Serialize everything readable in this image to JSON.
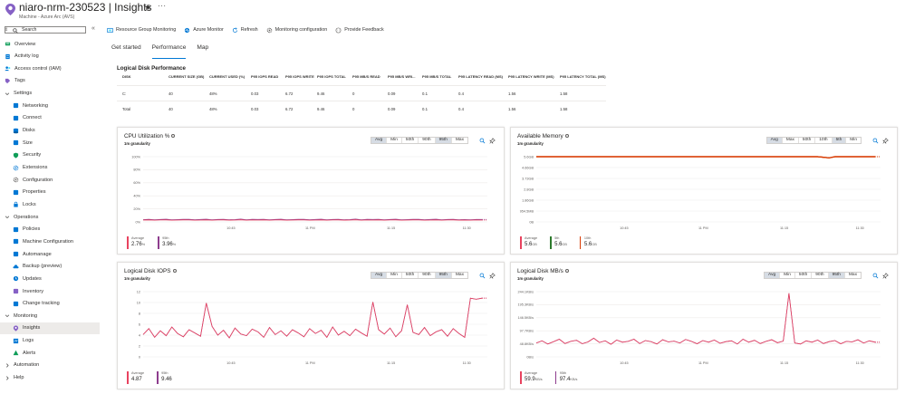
{
  "header": {
    "title": "niaro-nrm-230523 | Insights",
    "subtitle": "Machine - Azure Arc (AVS)",
    "star": "★",
    "more": "···"
  },
  "sidebar": {
    "search_placeholder": "Search",
    "collapse": "«",
    "items": [
      {
        "label": "Overview",
        "icon": "overview-icon",
        "level": 0
      },
      {
        "label": "Activity log",
        "icon": "activity-log-icon",
        "level": 0
      },
      {
        "label": "Access control (IAM)",
        "icon": "iam-icon",
        "level": 0
      },
      {
        "label": "Tags",
        "icon": "tag-icon",
        "level": 0
      },
      {
        "label": "Settings",
        "icon": "chevron-down-icon",
        "level": 0,
        "group": true
      },
      {
        "label": "Networking",
        "icon": "networking-icon",
        "level": 1
      },
      {
        "label": "Connect",
        "icon": "connect-icon",
        "level": 1
      },
      {
        "label": "Disks",
        "icon": "disk-icon",
        "level": 1
      },
      {
        "label": "Size",
        "icon": "size-icon",
        "level": 1
      },
      {
        "label": "Security",
        "icon": "shield-icon",
        "level": 1
      },
      {
        "label": "Extensions",
        "icon": "extensions-icon",
        "level": 1
      },
      {
        "label": "Configuration",
        "icon": "configuration-icon",
        "level": 1
      },
      {
        "label": "Properties",
        "icon": "properties-icon",
        "level": 1
      },
      {
        "label": "Locks",
        "icon": "lock-icon",
        "level": 1
      },
      {
        "label": "Operations",
        "icon": "chevron-down-icon",
        "level": 0,
        "group": true
      },
      {
        "label": "Policies",
        "icon": "policies-icon",
        "level": 1
      },
      {
        "label": "Machine Configuration",
        "icon": "machine-configuration-icon",
        "level": 1
      },
      {
        "label": "Automanage",
        "icon": "automanage-icon",
        "level": 1
      },
      {
        "label": "Backup (preview)",
        "icon": "backup-icon",
        "level": 1
      },
      {
        "label": "Updates",
        "icon": "updates-icon",
        "level": 1
      },
      {
        "label": "Inventory",
        "icon": "inventory-icon",
        "level": 1
      },
      {
        "label": "Change tracking",
        "icon": "change-tracking-icon",
        "level": 1
      },
      {
        "label": "Monitoring",
        "icon": "chevron-down-icon",
        "level": 0,
        "group": true
      },
      {
        "label": "Insights",
        "icon": "insights-icon",
        "level": 1,
        "active": true
      },
      {
        "label": "Logs",
        "icon": "logs-icon",
        "level": 1
      },
      {
        "label": "Alerts",
        "icon": "alerts-icon",
        "level": 1
      },
      {
        "label": "Automation",
        "icon": "chevron-right-icon",
        "level": 0,
        "group": true
      },
      {
        "label": "Help",
        "icon": "chevron-right-icon",
        "level": 0,
        "group": true
      }
    ]
  },
  "toolbar": [
    {
      "label": "Resource Group Monitoring",
      "icon": "resource-group-icon"
    },
    {
      "label": "Azure Monitor",
      "icon": "azure-monitor-icon"
    },
    {
      "label": "Refresh",
      "icon": "refresh-icon"
    },
    {
      "label": "Monitoring configuration",
      "icon": "gear-icon"
    },
    {
      "label": "Provide Feedback",
      "icon": "feedback-icon"
    }
  ],
  "tabs": [
    {
      "label": "Get started",
      "active": false
    },
    {
      "label": "Performance",
      "active": true
    },
    {
      "label": "Map",
      "active": false
    }
  ],
  "disk_table": {
    "title": "Logical Disk Performance",
    "columns": [
      "DISK",
      "CURRENT SIZE (GB)",
      "CURRENT USED (%)",
      "P95 IOPs READ",
      "P95 IOPs WRITE",
      "P95 IOPs TOTAL",
      "P95 MB/s READ",
      "P95 MB/s WRI...",
      "P95 MB/s TOTAL",
      "P95 LATENCY READ (ms)",
      "P95 LATENCY WRITE (ms)",
      "P95 LATENCY TOTAL (ms)"
    ],
    "rows": [
      [
        "C:",
        "40",
        "48%",
        "0.03",
        "6.72",
        "9.46",
        "0",
        "0.09",
        "0.1",
        "0.4",
        "1.56",
        "1.58"
      ],
      [
        "Total",
        "40",
        "48%",
        "0.03",
        "6.72",
        "9.46",
        "0",
        "0.09",
        "0.1",
        "0.4",
        "1.56",
        "1.58"
      ]
    ]
  },
  "colors": {
    "average": "#e8435f",
    "p95": "#8e3d8e",
    "available": "#d83b01",
    "p5": "#2d7a2d",
    "p10": "#c4314b",
    "accent": "#0078d4"
  },
  "cards": [
    {
      "title": "CPU Utilization %",
      "granularity": "1m granularity",
      "agg": [
        "Avg",
        "Min",
        "50th",
        "90th",
        "95th",
        "Max"
      ],
      "agg_selected": [
        0,
        4
      ],
      "legend": [
        {
          "name": "Average",
          "value": "2.76",
          "unit": "%",
          "color": "#e8435f"
        },
        {
          "name": "95th",
          "value": "3.96",
          "unit": "%",
          "color": "#8e3d8e"
        }
      ]
    },
    {
      "title": "Available Memory",
      "granularity": "1m granularity",
      "agg": [
        "Avg",
        "Max",
        "50th",
        "10th",
        "5th",
        "Min"
      ],
      "agg_selected": [
        0,
        4
      ],
      "legend": [
        {
          "name": "Average",
          "value": "5.6",
          "unit": "GB",
          "color": "#e8435f"
        },
        {
          "name": "5th",
          "value": "5.6",
          "unit": "GB",
          "color": "#2d7a2d"
        },
        {
          "name": "10th",
          "value": "5.6",
          "unit": "GB",
          "color": "#d83b01"
        }
      ]
    },
    {
      "title": "Logical Disk IOPS",
      "granularity": "1m granularity",
      "agg": [
        "Avg",
        "Min",
        "50th",
        "90th",
        "95th",
        "Max"
      ],
      "agg_selected": [
        0,
        4
      ],
      "legend": [
        {
          "name": "Average",
          "value": "4.87",
          "unit": "",
          "color": "#e8435f"
        },
        {
          "name": "95th",
          "value": "9.46",
          "unit": "",
          "color": "#8e3d8e"
        }
      ]
    },
    {
      "title": "Logical Disk MB/s",
      "granularity": "1m granularity",
      "agg": [
        "Avg",
        "Min",
        "50th",
        "90th",
        "95th",
        "Max"
      ],
      "agg_selected": [
        0,
        4
      ],
      "legend": [
        {
          "name": "Average",
          "value": "59.9",
          "unit": "KB/s",
          "color": "#e8435f"
        },
        {
          "name": "95th",
          "value": "97.4",
          "unit": "KB/s",
          "color": "#8e3d8e"
        }
      ]
    }
  ],
  "chart_data": [
    {
      "type": "line",
      "title": "CPU Utilization %",
      "x_ticks": [
        "10:45",
        "11 PM",
        "11:15",
        "11:30"
      ],
      "y_ticks": [
        "100%",
        "80%",
        "60%",
        "40%",
        "20%",
        "0%"
      ],
      "ylim": [
        0,
        100
      ],
      "series": [
        {
          "name": "Average",
          "values": [
            2.8,
            3.0,
            2.6,
            2.9,
            3.1,
            2.7,
            2.8,
            3.0,
            2.9,
            2.6,
            2.8,
            3.1,
            2.7,
            2.9,
            3.0,
            2.6,
            2.8,
            3.2,
            2.7,
            2.9,
            2.8,
            3.0,
            2.6,
            2.9,
            3.1,
            2.7,
            2.8,
            3.0,
            2.9,
            2.6,
            2.8,
            3.1,
            2.7,
            2.9,
            3.0,
            2.6,
            2.8,
            3.2,
            2.7,
            2.9,
            2.8,
            3.0,
            2.6,
            2.9,
            3.1,
            2.7,
            2.8,
            3.0,
            2.9,
            2.6,
            2.8,
            3.1,
            2.7,
            2.9,
            3.0,
            2.6,
            2.8,
            2.7,
            2.9,
            2.8
          ]
        },
        {
          "name": "95th",
          "values": [
            3.5,
            3.9,
            3.3,
            3.8,
            4.1,
            3.4,
            3.6,
            4.0,
            3.9,
            3.2,
            3.7,
            4.2,
            3.4,
            3.8,
            4.0,
            3.3,
            3.6,
            4.3,
            3.4,
            3.9,
            3.7,
            4.0,
            3.3,
            3.8,
            4.1,
            3.4,
            3.6,
            4.0,
            3.9,
            3.2,
            3.7,
            4.2,
            3.4,
            3.8,
            4.0,
            3.3,
            3.6,
            4.3,
            3.4,
            3.9,
            3.7,
            4.0,
            3.3,
            3.8,
            4.1,
            3.4,
            3.6,
            4.0,
            3.9,
            3.2,
            3.7,
            4.2,
            3.4,
            3.8,
            4.0,
            3.3,
            3.6,
            3.4,
            3.8,
            3.7
          ]
        }
      ]
    },
    {
      "type": "line",
      "title": "Available Memory",
      "x_ticks": [
        "10:45",
        "11 PM",
        "11:15",
        "11:30"
      ],
      "y_ticks": [
        "5.6GB",
        "4.66GB",
        "3.73GB",
        "2.8GB",
        "1.86GB",
        "954.5MB",
        "0B"
      ],
      "ylim": [
        0,
        5.6
      ],
      "series": [
        {
          "name": "Average",
          "values": [
            5.6,
            5.6,
            5.6,
            5.6,
            5.6,
            5.6,
            5.6,
            5.6,
            5.6,
            5.6,
            5.6,
            5.6,
            5.6,
            5.6,
            5.6,
            5.6,
            5.6,
            5.6,
            5.6,
            5.6,
            5.6,
            5.6,
            5.6,
            5.6,
            5.6,
            5.6,
            5.6,
            5.6,
            5.6,
            5.6,
            5.6,
            5.6,
            5.6,
            5.6,
            5.6,
            5.6,
            5.6,
            5.6,
            5.6,
            5.6,
            5.6,
            5.6,
            5.6,
            5.6,
            5.6,
            5.6,
            5.6,
            5.6,
            5.6,
            5.6,
            5.55,
            5.5,
            5.6,
            5.6,
            5.6,
            5.6,
            5.6,
            5.6,
            5.6,
            5.6
          ]
        },
        {
          "name": "5th",
          "values": [
            5.6,
            5.6,
            5.6,
            5.6,
            5.6,
            5.6,
            5.6,
            5.6,
            5.6,
            5.6,
            5.6,
            5.6,
            5.6,
            5.6,
            5.6,
            5.6,
            5.6,
            5.6,
            5.6,
            5.6,
            5.6,
            5.6,
            5.6,
            5.6,
            5.6,
            5.6,
            5.6,
            5.6,
            5.6,
            5.6,
            5.6,
            5.6,
            5.6,
            5.6,
            5.6,
            5.6,
            5.6,
            5.6,
            5.6,
            5.6,
            5.6,
            5.6,
            5.6,
            5.6,
            5.6,
            5.6,
            5.6,
            5.6,
            5.6,
            5.6,
            5.55,
            5.5,
            5.6,
            5.6,
            5.6,
            5.6,
            5.6,
            5.6,
            5.6,
            5.6
          ]
        },
        {
          "name": "10th",
          "values": [
            5.6,
            5.6,
            5.6,
            5.6,
            5.6,
            5.6,
            5.6,
            5.6,
            5.6,
            5.6,
            5.6,
            5.6,
            5.6,
            5.6,
            5.6,
            5.6,
            5.6,
            5.6,
            5.6,
            5.6,
            5.6,
            5.6,
            5.6,
            5.6,
            5.6,
            5.6,
            5.6,
            5.6,
            5.6,
            5.6,
            5.6,
            5.6,
            5.6,
            5.6,
            5.6,
            5.6,
            5.6,
            5.6,
            5.6,
            5.6,
            5.6,
            5.6,
            5.6,
            5.6,
            5.6,
            5.6,
            5.6,
            5.6,
            5.6,
            5.6,
            5.55,
            5.5,
            5.6,
            5.6,
            5.6,
            5.6,
            5.6,
            5.6,
            5.6,
            5.6
          ]
        }
      ]
    },
    {
      "type": "line",
      "title": "Logical Disk IOPS",
      "x_ticks": [
        "10:45",
        "11 PM",
        "11:15",
        "11:30"
      ],
      "y_ticks": [
        "12",
        "10",
        "8",
        "6",
        "4",
        "2",
        "0"
      ],
      "ylim": [
        0,
        12
      ],
      "series": [
        {
          "name": "Average",
          "values": [
            4.1,
            5.2,
            3.6,
            4.8,
            3.9,
            5.5,
            4.3,
            3.7,
            5.0,
            4.4,
            3.8,
            9.9,
            5.6,
            4.0,
            4.9,
            3.5,
            5.3,
            4.2,
            3.9,
            5.1,
            4.6,
            3.6,
            5.4,
            4.1,
            4.8,
            3.8,
            5.0,
            4.4,
            3.7,
            5.2,
            4.3,
            4.9,
            3.6,
            5.5,
            4.0,
            4.7,
            3.9,
            5.1,
            4.4,
            3.8,
            10.1,
            5.0,
            4.2,
            5.3,
            3.7,
            4.8,
            9.6,
            4.5,
            4.1,
            5.4,
            3.9,
            4.6,
            5.0,
            3.8,
            5.2,
            4.3,
            3.6,
            10.8,
            10.6,
            10.8
          ]
        },
        {
          "name": "95th",
          "values": [
            4.1,
            5.2,
            3.6,
            4.8,
            3.9,
            5.5,
            4.3,
            3.7,
            5.0,
            4.4,
            3.8,
            9.9,
            5.6,
            4.0,
            4.9,
            3.5,
            5.3,
            4.2,
            3.9,
            5.1,
            4.6,
            3.6,
            5.4,
            4.1,
            4.8,
            3.8,
            5.0,
            4.4,
            3.7,
            5.2,
            4.3,
            4.9,
            3.6,
            5.5,
            4.0,
            4.7,
            3.9,
            5.1,
            4.4,
            3.8,
            10.1,
            5.0,
            4.2,
            5.3,
            3.7,
            4.8,
            9.6,
            4.5,
            4.1,
            5.4,
            3.9,
            4.6,
            5.0,
            3.8,
            5.2,
            4.3,
            3.6,
            10.8,
            10.6,
            10.8
          ]
        }
      ]
    },
    {
      "type": "line",
      "title": "Logical Disk MB/s",
      "x_ticks": [
        "10:45",
        "11 PM",
        "11:15",
        "11:30"
      ],
      "y_ticks": [
        "244.1KB/s",
        "195.3KB/s",
        "146.5KB/s",
        "97.7KB/s",
        "48.8KB/s",
        "0B/s"
      ],
      "ylim": [
        0,
        244.1
      ],
      "series": [
        {
          "name": "Average",
          "values": [
            52,
            60,
            48,
            57,
            66,
            50,
            58,
            62,
            49,
            56,
            70,
            54,
            60,
            47,
            63,
            55,
            58,
            66,
            50,
            61,
            57,
            48,
            64,
            56,
            59,
            52,
            65,
            58,
            49,
            61,
            55,
            63,
            51,
            57,
            60,
            48,
            66,
            55,
            62,
            50,
            58,
            64,
            53,
            59,
            238,
            52,
            48,
            60,
            55,
            63,
            50,
            57,
            61,
            49,
            58,
            56,
            64,
            52,
            60,
            55
          ]
        },
        {
          "name": "95th",
          "values": [
            52,
            60,
            48,
            57,
            66,
            50,
            58,
            62,
            49,
            56,
            70,
            54,
            60,
            47,
            63,
            55,
            58,
            66,
            50,
            61,
            57,
            48,
            64,
            56,
            59,
            52,
            65,
            58,
            49,
            61,
            55,
            63,
            51,
            57,
            60,
            48,
            66,
            55,
            62,
            50,
            58,
            64,
            53,
            59,
            238,
            52,
            48,
            60,
            55,
            63,
            50,
            57,
            61,
            49,
            58,
            56,
            64,
            52,
            60,
            55
          ]
        }
      ]
    }
  ]
}
